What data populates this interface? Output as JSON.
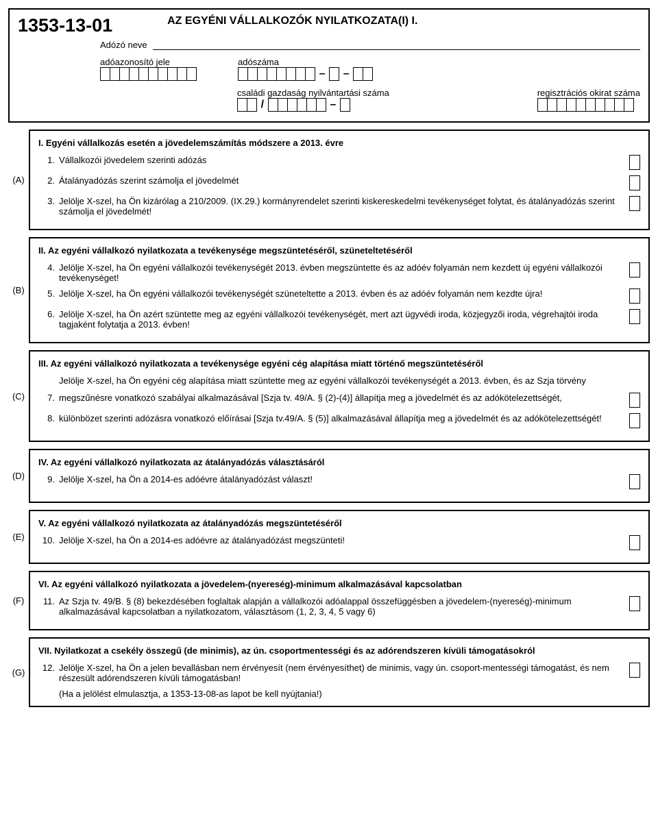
{
  "header": {
    "form_code": "1353-13-01",
    "title": "AZ EGYÉNI VÁLLALKOZÓK NYILATKOZATA(I) I.",
    "taxpayer_name_label": "Adózó neve",
    "tax_id_label": "adóazonosító jele",
    "tax_number_label": "adószáma",
    "family_farm_label": "családi gazdaság nyilvántartási száma",
    "reg_doc_label": "regisztrációs okirat száma",
    "cells": {
      "tax_id": 10,
      "tax_number_a": 8,
      "tax_number_b": 1,
      "tax_number_c": 2,
      "family_a": 2,
      "family_b": 6,
      "family_c": 1,
      "reg": 10
    }
  },
  "sections": {
    "A": {
      "letter": "(A)",
      "title": "I. Egyéni vállalkozás esetén a jövedelemszámítás módszere a 2013. évre",
      "items": [
        {
          "n": "1.",
          "t": "Vállalkozói jövedelem szerinti adózás"
        },
        {
          "n": "2.",
          "t": "Átalányadózás szerint számolja el jövedelmét"
        },
        {
          "n": "3.",
          "t": "Jelölje X-szel, ha Ön kizárólag a 210/2009. (IX.29.) kormányrendelet szerinti kiskereskedelmi tevékenységet folytat, és átalányadózás szerint számolja el jövedelmét!"
        }
      ]
    },
    "B": {
      "letter": "(B)",
      "title": "II. Az egyéni vállalkozó nyilatkozata a tevékenysége megszüntetéséről, szüneteltetéséről",
      "items": [
        {
          "n": "4.",
          "t": "Jelölje X-szel, ha Ön egyéni vállalkozói tevékenységét 2013. évben megszüntette és az adóév folyamán nem kezdett új egyéni vállalkozói tevékenységet!"
        },
        {
          "n": "5.",
          "t": "Jelölje X-szel, ha Ön  egyéni vállalkozói tevékenységét szüneteltette a 2013. évben és az adóév folyamán nem kezdte újra!"
        },
        {
          "n": "6.",
          "t": "Jelölje X-szel, ha Ön azért szüntette meg az egyéni vállalkozói tevékenységét, mert azt ügyvédi iroda, közjegyzői iroda, végrehajtói iroda tagjaként folytatja a 2013. évben!"
        }
      ]
    },
    "C": {
      "letter": "(C)",
      "title": "III. Az egyéni vállalkozó nyilatkozata a tevékenysége egyéni cég alapítása miatt történő megszüntetéséről",
      "preamble": "Jelölje X-szel, ha Ön egyéni cég alapítása miatt szüntette meg az egyéni vállalkozói tevékenységét a 2013. évben, és az Szja törvény",
      "items": [
        {
          "n": "7.",
          "t": "megszűnésre vonatkozó szabályai alkalmazásával [Szja tv. 49/A. § (2)-(4)] állapítja meg a jövedelmét és az adókötelezettségét,"
        },
        {
          "n": "8.",
          "t": "különbözet szerinti adózásra vonatkozó előírásai [Szja tv.49/A. § (5)] alkalmazásával állapítja meg a jövedelmét és az adókötelezettségét!"
        }
      ]
    },
    "D": {
      "letter": "(D)",
      "title": "IV. Az egyéni vállalkozó nyilatkozata az átalányadózás választásáról",
      "items": [
        {
          "n": "9.",
          "t": "Jelölje X-szel, ha Ön a 2014-es adóévre átalányadózást választ!"
        }
      ]
    },
    "E": {
      "letter": "(E)",
      "title": "V. Az egyéni vállalkozó nyilatkozata az átalányadózás megszüntetéséről",
      "items": [
        {
          "n": "10.",
          "t": "Jelölje X-szel, ha Ön a 2014-es adóévre az átalányadózást megszünteti!"
        }
      ]
    },
    "F": {
      "letter": "(F)",
      "title": "VI. Az egyéni vállalkozó nyilatkozata a  jövedelem-(nyereség)-minimum alkalmazásával kapcsolatban",
      "items": [
        {
          "n": "11.",
          "t": "Az Szja tv. 49/B. § (8) bekezdésében foglaltak alapján a vállalkozói adóalappal összefüggésben a jövedelem-(nyereség)-minimum alkalmazásával kapcsolatban a nyilatkozatom, választásom (1, 2, 3, 4, 5 vagy 6)"
        }
      ]
    },
    "G": {
      "letter": "(G)",
      "title": "VII. Nyilatkozat a csekély összegű (de minimis), az ún. csoportmentességi és az adórendszeren kívüli támogatásokról",
      "items": [
        {
          "n": "12.",
          "t": "Jelölje X-szel, ha Ön a jelen bevallásban nem érvényesít (nem érvényesíthet) de minimis, vagy ún. csoport-mentességi támogatást, és nem részesült adórendszeren kívüli támogatásban!"
        }
      ],
      "note": "(Ha a jelölést elmulasztja, a 1353-13-08-as lapot be kell nyújtania!)"
    }
  }
}
